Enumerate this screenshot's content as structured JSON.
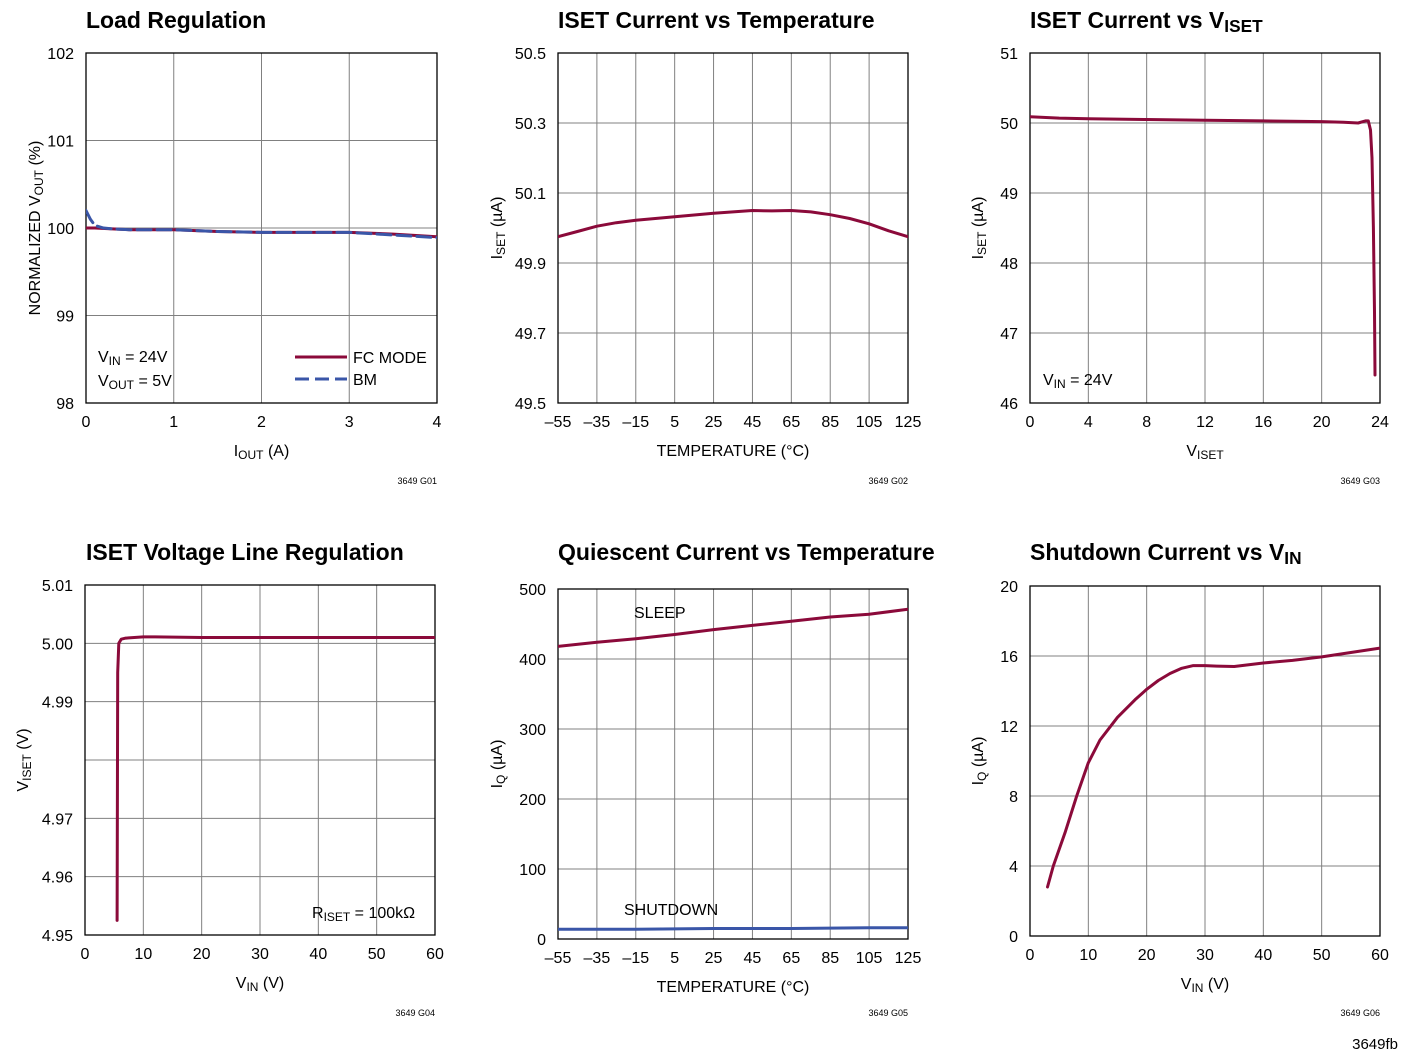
{
  "page_footer": "3649fb",
  "colors": {
    "fc_mode": "#8b0a3a",
    "bm": "#3a56a8",
    "grid": "#808080"
  },
  "chart_data": [
    {
      "id": "g01",
      "type": "line",
      "title": "Load Regulation",
      "title_sub": "",
      "xlabel": "I",
      "xlabel_sub": "OUT",
      "xlabel_suffix": " (A)",
      "ylabel": "NORMALIZED V",
      "ylabel_sub": "OUT",
      "ylabel_suffix": " (%)",
      "xlim": [
        0,
        4
      ],
      "ylim": [
        98,
        102
      ],
      "xticks": [
        0,
        1,
        2,
        3,
        4
      ],
      "yticks": [
        98,
        99,
        100,
        101,
        102
      ],
      "xtick_labels": [
        "0",
        "1",
        "2",
        "3",
        "4"
      ],
      "ytick_labels": [
        "98",
        "99",
        "100",
        "101",
        "102"
      ],
      "figure_code": "3649 G01",
      "annotations": [
        {
          "text": "V",
          "sub": "IN",
          "suffix": " = 24V"
        },
        {
          "text": "V",
          "sub": "OUT",
          "suffix": " = 5V"
        }
      ],
      "legend": [
        {
          "name": "FC MODE",
          "style": "solid"
        },
        {
          "name": "BM",
          "style": "dashed"
        }
      ],
      "series": [
        {
          "name": "FC MODE",
          "style": "solid",
          "x": [
            0,
            0.1,
            0.3,
            0.5,
            1,
            1.5,
            2,
            2.5,
            3,
            3.5,
            4
          ],
          "y": [
            100.0,
            100.0,
            99.99,
            99.98,
            99.98,
            99.96,
            99.95,
            99.95,
            99.95,
            99.93,
            99.9
          ]
        },
        {
          "name": "BM",
          "style": "dashed",
          "x": [
            0,
            0.05,
            0.1,
            0.2,
            0.3,
            0.5,
            1,
            1.5,
            2,
            2.5,
            3,
            3.5,
            4
          ],
          "y": [
            100.2,
            100.1,
            100.03,
            100.0,
            99.99,
            99.98,
            99.98,
            99.96,
            99.95,
            99.95,
            99.95,
            99.92,
            99.89
          ]
        }
      ]
    },
    {
      "id": "g02",
      "type": "line",
      "title": "ISET Current vs Temperature",
      "title_sub": "",
      "xlabel": "TEMPERATURE (°C)",
      "xlabel_sub": "",
      "xlabel_suffix": "",
      "ylabel": "I",
      "ylabel_sub": "SET",
      "ylabel_suffix": " (µA)",
      "xlim": [
        -55,
        125
      ],
      "ylim": [
        49.5,
        50.5
      ],
      "xticks": [
        -55,
        -35,
        -15,
        5,
        25,
        45,
        65,
        85,
        105,
        125
      ],
      "yticks": [
        49.5,
        49.7,
        49.9,
        50.1,
        50.3,
        50.5
      ],
      "xtick_labels": [
        "–55",
        "–35",
        "–15",
        "5",
        "25",
        "45",
        "65",
        "85",
        "105",
        "125"
      ],
      "ytick_labels": [
        "49.5",
        "49.7",
        "49.9",
        "50.1",
        "50.3",
        "50.5"
      ],
      "figure_code": "3649 G02",
      "annotations": [],
      "legend": [],
      "series": [
        {
          "name": "",
          "style": "solid",
          "x": [
            -55,
            -45,
            -35,
            -25,
            -15,
            5,
            25,
            45,
            55,
            65,
            75,
            85,
            95,
            105,
            115,
            125
          ],
          "y": [
            49.975,
            49.99,
            50.005,
            50.015,
            50.022,
            50.032,
            50.042,
            50.05,
            50.049,
            50.05,
            50.046,
            50.038,
            50.027,
            50.012,
            49.992,
            49.975
          ]
        }
      ]
    },
    {
      "id": "g03",
      "type": "line",
      "title": "ISET Current vs V",
      "title_sub": "ISET",
      "xlabel": "V",
      "xlabel_sub": "ISET",
      "xlabel_suffix": "",
      "ylabel": "I",
      "ylabel_sub": "SET",
      "ylabel_suffix": " (µA)",
      "xlim": [
        0,
        24
      ],
      "ylim": [
        46,
        51
      ],
      "xticks": [
        0,
        4,
        8,
        12,
        16,
        20,
        24
      ],
      "yticks": [
        46,
        47,
        48,
        49,
        50,
        51
      ],
      "xtick_labels": [
        "0",
        "4",
        "8",
        "12",
        "16",
        "20",
        "24"
      ],
      "ytick_labels": [
        "46",
        "47",
        "48",
        "49",
        "50",
        "51"
      ],
      "figure_code": "3649 G03",
      "annotations": [
        {
          "text": "V",
          "sub": "IN",
          "suffix": " = 24V"
        }
      ],
      "legend": [],
      "series": [
        {
          "name": "",
          "style": "solid",
          "x": [
            0,
            2,
            4,
            8,
            12,
            16,
            20,
            21.5,
            22.5,
            23.0,
            23.2,
            23.35,
            23.45,
            23.55,
            23.62,
            23.66
          ],
          "y": [
            50.09,
            50.07,
            50.06,
            50.05,
            50.04,
            50.03,
            50.02,
            50.01,
            50.0,
            50.03,
            50.03,
            49.9,
            49.5,
            48.5,
            47.3,
            46.4
          ]
        }
      ]
    },
    {
      "id": "g04",
      "type": "line",
      "title": "ISET Voltage Line Regulation",
      "title_sub": "",
      "xlabel": "V",
      "xlabel_sub": "IN",
      "xlabel_suffix": " (V)",
      "ylabel": "V",
      "ylabel_sub": "ISET",
      "ylabel_suffix": " (V)",
      "xlim": [
        0,
        60
      ],
      "ylim": [
        4.95,
        5.01
      ],
      "xticks": [
        0,
        10,
        20,
        30,
        40,
        50,
        60
      ],
      "yticks": [
        4.95,
        4.96,
        4.97,
        4.98,
        4.99,
        5.0,
        5.01
      ],
      "xtick_labels": [
        "0",
        "10",
        "20",
        "30",
        "40",
        "50",
        "60"
      ],
      "ytick_labels": [
        "4.95",
        "4.96",
        "4.97",
        "",
        "4.99",
        "5.00",
        "5.01"
      ],
      "figure_code": "3649 G04",
      "annotations": [
        {
          "text": "R",
          "sub": "ISET",
          "suffix": " = 100kΩ"
        }
      ],
      "legend": [],
      "series": [
        {
          "name": "",
          "style": "solid",
          "x": [
            5.5,
            5.6,
            5.8,
            6.2,
            7,
            10,
            12,
            20,
            30,
            40,
            50,
            60
          ],
          "y": [
            4.9525,
            4.995,
            5.0,
            5.0007,
            5.0009,
            5.0011,
            5.0011,
            5.001,
            5.001,
            5.001,
            5.001,
            5.001
          ]
        }
      ]
    },
    {
      "id": "g05",
      "type": "line",
      "title": "Quiescent Current vs Temperature",
      "title_sub": "",
      "xlabel": "TEMPERATURE (°C)",
      "xlabel_sub": "",
      "xlabel_suffix": "",
      "ylabel": "I",
      "ylabel_sub": "Q",
      "ylabel_suffix": " (µA)",
      "xlim": [
        -55,
        125
      ],
      "ylim": [
        0,
        500
      ],
      "xticks": [
        -55,
        -35,
        -15,
        5,
        25,
        45,
        65,
        85,
        105,
        125
      ],
      "yticks": [
        0,
        100,
        200,
        300,
        400,
        500
      ],
      "xtick_labels": [
        "–55",
        "–35",
        "–15",
        "5",
        "25",
        "45",
        "65",
        "85",
        "105",
        "125"
      ],
      "ytick_labels": [
        "0",
        "100",
        "200",
        "300",
        "400",
        "500"
      ],
      "figure_code": "3649 G05",
      "annotations": [
        {
          "text": "SLEEP",
          "sub": "",
          "suffix": ""
        },
        {
          "text": "SHUTDOWN",
          "sub": "",
          "suffix": ""
        }
      ],
      "legend": [],
      "series": [
        {
          "name": "SLEEP",
          "style": "solid",
          "x": [
            -55,
            -35,
            -15,
            5,
            25,
            45,
            65,
            85,
            105,
            125
          ],
          "y": [
            418,
            424,
            429,
            435,
            442,
            448,
            454,
            460,
            464,
            471
          ]
        },
        {
          "name": "SHUTDOWN",
          "style": "solid-blue",
          "x": [
            -55,
            -15,
            25,
            65,
            105,
            125
          ],
          "y": [
            14,
            14,
            15,
            15,
            16,
            16
          ]
        }
      ]
    },
    {
      "id": "g06",
      "type": "line",
      "title": "Shutdown Current vs V",
      "title_sub": "IN",
      "xlabel": "V",
      "xlabel_sub": "IN",
      "xlabel_suffix": " (V)",
      "ylabel": "I",
      "ylabel_sub": "Q",
      "ylabel_suffix": " (µA)",
      "xlim": [
        0,
        60
      ],
      "ylim": [
        0,
        20
      ],
      "xticks": [
        0,
        10,
        20,
        30,
        40,
        50,
        60
      ],
      "yticks": [
        0,
        4,
        8,
        12,
        16,
        20
      ],
      "xtick_labels": [
        "0",
        "10",
        "20",
        "30",
        "40",
        "50",
        "60"
      ],
      "ytick_labels": [
        "0",
        "4",
        "8",
        "12",
        "16",
        "20"
      ],
      "figure_code": "3649 G06",
      "annotations": [],
      "legend": [],
      "series": [
        {
          "name": "",
          "style": "solid",
          "x": [
            3,
            4,
            6,
            8,
            10,
            12,
            15,
            18,
            20,
            22,
            24,
            26,
            28,
            30,
            32,
            35,
            40,
            45,
            50,
            55,
            60
          ],
          "y": [
            2.8,
            4.0,
            5.9,
            8.0,
            9.9,
            11.2,
            12.5,
            13.5,
            14.1,
            14.6,
            15.0,
            15.3,
            15.45,
            15.45,
            15.42,
            15.4,
            15.6,
            15.75,
            15.95,
            16.2,
            16.45
          ]
        }
      ]
    }
  ]
}
